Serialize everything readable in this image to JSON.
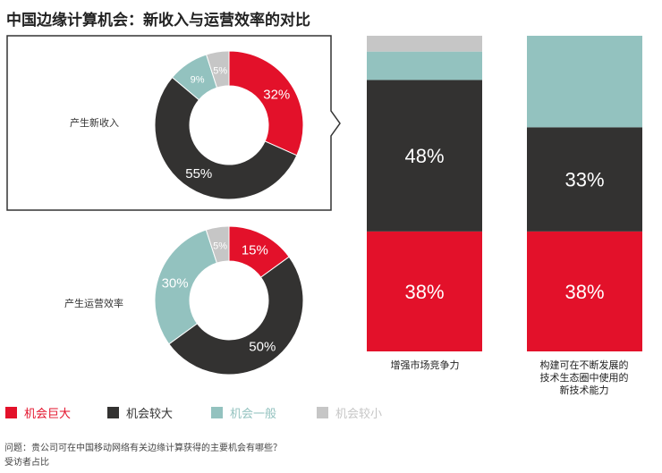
{
  "title": "中国边缘计算机会：新收入与运营效率的对比",
  "colors": {
    "huge": "#e3112a",
    "large": "#333231",
    "normal": "#93c2bf",
    "small": "#c6c6c6"
  },
  "chart_data": [
    {
      "type": "pie",
      "subtype": "donut",
      "label": "产生新收入",
      "slices": [
        {
          "name": "机会巨大",
          "value": 32
        },
        {
          "name": "机会较大",
          "value": 55
        },
        {
          "name": "机会一般",
          "value": 9
        },
        {
          "name": "机会较小",
          "value": 5
        }
      ]
    },
    {
      "type": "pie",
      "subtype": "donut",
      "label": "产生运营效率",
      "slices": [
        {
          "name": "机会巨大",
          "value": 15
        },
        {
          "name": "机会较大",
          "value": 50
        },
        {
          "name": "机会一般",
          "value": 30
        },
        {
          "name": "机会较小",
          "value": 5
        }
      ]
    },
    {
      "type": "bar",
      "subtype": "stacked-100",
      "categories": [
        "增强市场竞争力",
        "构建可在不断发展的技术生态圈中使用的新技术能力"
      ],
      "category_lines": [
        [
          "增强市场竞争力"
        ],
        [
          "构建可在不断发展的",
          "技术生态圈中使用的",
          "新技术能力"
        ]
      ],
      "series": [
        {
          "name": "机会巨大",
          "values": [
            38,
            38
          ],
          "labels": [
            "38%",
            "38%"
          ]
        },
        {
          "name": "机会较大",
          "values": [
            48,
            33
          ],
          "labels": [
            "48%",
            "33%"
          ]
        },
        {
          "name": "机会一般",
          "values": [
            9,
            29
          ],
          "labels": [
            "",
            ""
          ]
        },
        {
          "name": "机会较小",
          "values": [
            5,
            0
          ],
          "labels": [
            "",
            ""
          ]
        }
      ],
      "ylim": [
        0,
        100
      ]
    }
  ],
  "legend": [
    "机会巨大",
    "机会较大",
    "机会一般",
    "机会较小"
  ],
  "note": {
    "question": "问题：贵公司可在中国移动网络有关边缘计算获得的主要机会有哪些？",
    "unit": "受访者占比"
  }
}
